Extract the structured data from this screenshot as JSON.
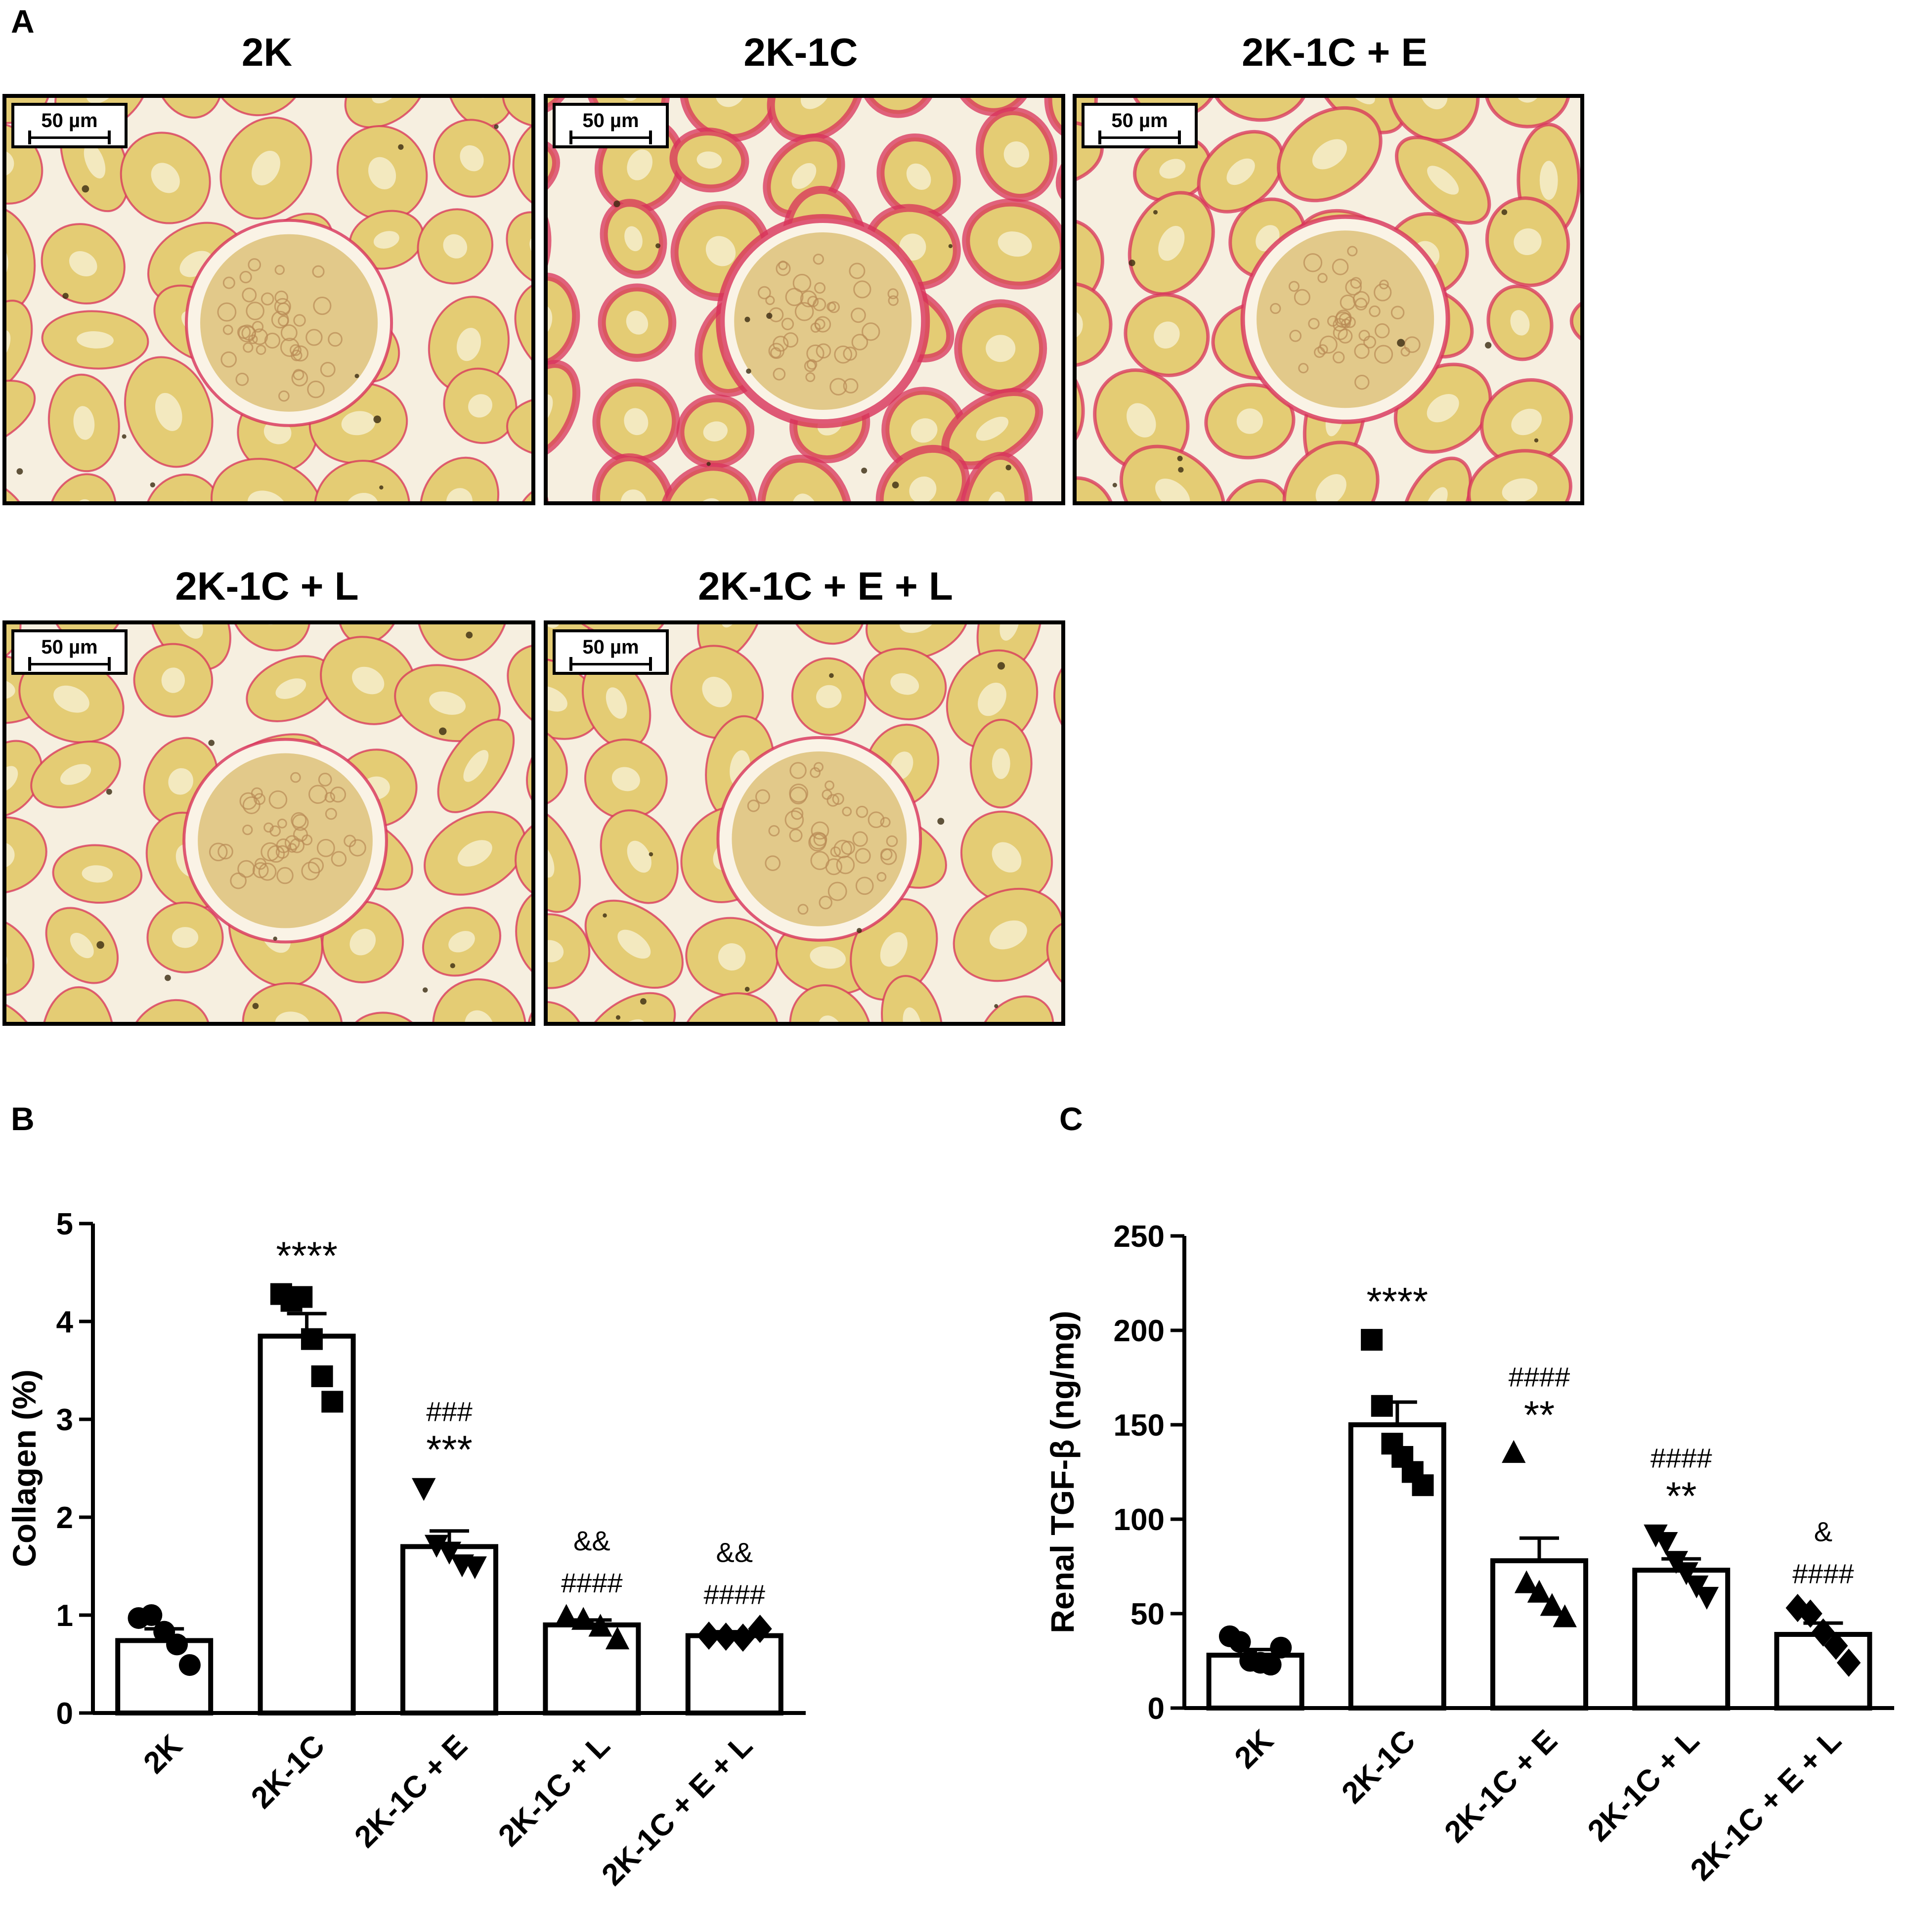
{
  "panels": {
    "a": "A",
    "b": "B",
    "c": "C"
  },
  "micrographs": [
    {
      "title": "2K",
      "scale": "50 µm",
      "fibrosis": "low"
    },
    {
      "title": "2K-1C",
      "scale": "50 µm",
      "fibrosis": "high"
    },
    {
      "title": "2K-1C + E",
      "scale": "50 µm",
      "fibrosis": "moderate"
    },
    {
      "title": "2K-1C + L",
      "scale": "50 µm",
      "fibrosis": "low"
    },
    {
      "title": "2K-1C + E + L",
      "scale": "50 µm",
      "fibrosis": "low"
    }
  ],
  "colors": {
    "tissue": "#e4cc74",
    "tubule_lumen": "#f4ecc8",
    "collagen": "#d8325a",
    "background": "#ffffff"
  },
  "chart_data": [
    {
      "type": "bar",
      "panel": "B",
      "categories": [
        "2K",
        "2K-1C",
        "2K-1C + E",
        "2K-1C + L",
        "2K-1C + E + L"
      ],
      "values": [
        0.74,
        3.85,
        1.7,
        0.9,
        0.79
      ],
      "sem": [
        0.12,
        0.23,
        0.16,
        0.05,
        0.04
      ],
      "points": [
        [
          0.97,
          1.0,
          0.83,
          0.7,
          0.49
        ],
        [
          4.28,
          4.21,
          4.25,
          3.82,
          3.44,
          3.18
        ],
        [
          2.3,
          1.72,
          1.65,
          1.52,
          1.5
        ],
        [
          0.98,
          0.95,
          0.88,
          0.75
        ],
        [
          0.79,
          0.78,
          0.77,
          0.86
        ]
      ],
      "markers": [
        "circle",
        "square",
        "triangle-down",
        "triangle-up",
        "diamond"
      ],
      "annotations": [
        [],
        [
          "****"
        ],
        [
          "###",
          "***"
        ],
        [
          "&&",
          "####"
        ],
        [
          "&&",
          "####"
        ]
      ],
      "ylabel": "Collagen (%)",
      "ylim": [
        0,
        5
      ],
      "yticks": [
        "0",
        "1",
        "2",
        "3",
        "4",
        "5"
      ]
    },
    {
      "type": "bar",
      "panel": "C",
      "categories": [
        "2K",
        "2K-1C",
        "2K-1C + E",
        "2K-1C + L",
        "2K-1C + E + L"
      ],
      "values": [
        28,
        150,
        78,
        73,
        39
      ],
      "sem": [
        3,
        12,
        12,
        6,
        6
      ],
      "points": [
        [
          38,
          35,
          25,
          24,
          23,
          32
        ],
        [
          195,
          160,
          140,
          133,
          125,
          118
        ],
        [
          135,
          66,
          61,
          54,
          48
        ],
        [
          92,
          88,
          78,
          72,
          65,
          59
        ],
        [
          53,
          50,
          40,
          33,
          24
        ]
      ],
      "markers": [
        "circle",
        "square",
        "triangle-up",
        "triangle-down",
        "diamond"
      ],
      "annotations": [
        [],
        [
          "****"
        ],
        [
          "####",
          "**"
        ],
        [
          "####",
          "**"
        ],
        [
          "&",
          "####"
        ]
      ],
      "ylabel": "Renal TGF-β (ng/mg)",
      "ylim": [
        0,
        250
      ],
      "yticks": [
        "0",
        "50",
        "100",
        "150",
        "200",
        "250"
      ]
    }
  ]
}
